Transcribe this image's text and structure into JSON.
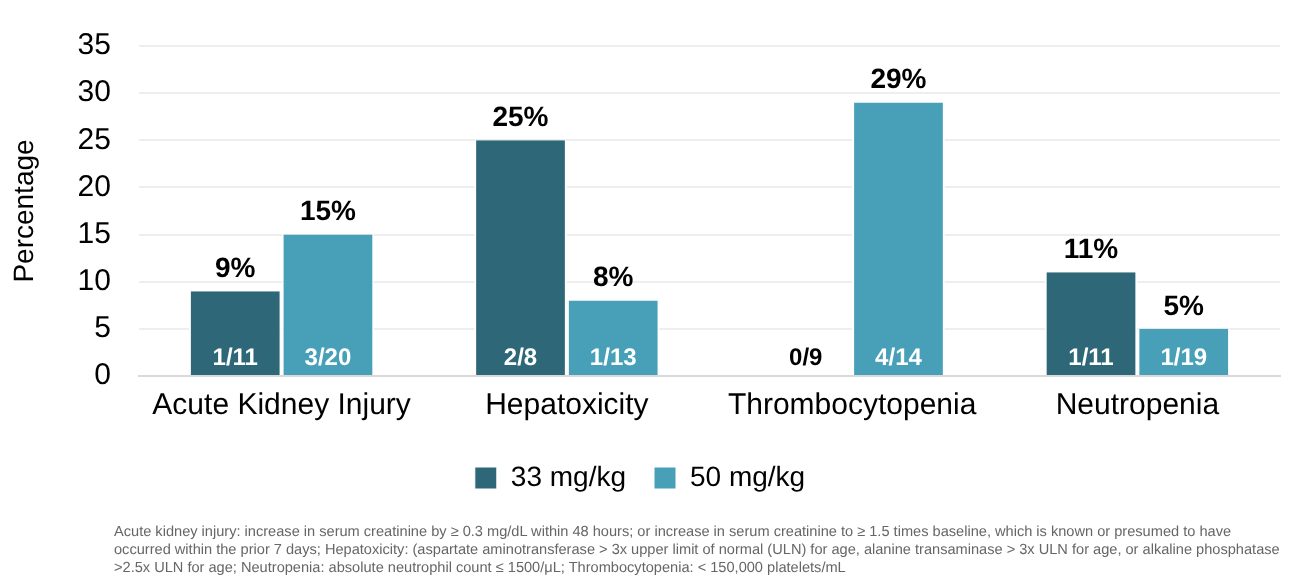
{
  "chart_data": {
    "type": "bar",
    "ylabel": "Percentage",
    "categories": [
      "Acute Kidney Injury",
      "Hepatoxicity",
      "Thrombocytopenia",
      "Neutropenia"
    ],
    "series": [
      {
        "name": "33 mg/kg",
        "color": "#2e6878",
        "values": [
          9,
          25,
          0,
          11
        ],
        "value_labels": [
          "9%",
          "25%",
          null,
          "11%"
        ]
      },
      {
        "name": "50 mg/kg",
        "color": "#47a0b8",
        "values": [
          15,
          8,
          29,
          5
        ],
        "value_labels": [
          "15%",
          "8%",
          "29%",
          "5%"
        ]
      }
    ],
    "ylim": [
      0,
      35
    ],
    "yticks": [
      0,
      5,
      10,
      15,
      20,
      25,
      30,
      35
    ],
    "grid": "y",
    "legend": "bottom",
    "annotations": [
      {
        "text": "1/11",
        "x": "Acute Kidney Injury",
        "y": 0
      },
      {
        "text": "3/20",
        "x": "Acute Kidney Injury",
        "y": 0
      },
      {
        "text": "2/8",
        "x": "Hepatoxicity",
        "y": 0
      },
      {
        "text": "1/13",
        "x": "Hepatoxicity",
        "y": 0
      },
      {
        "text": "0/9",
        "x": "Thrombocytopenia",
        "y": 0
      },
      {
        "text": "4/14",
        "x": "Thrombocytopenia",
        "y": 0
      },
      {
        "text": "1/11",
        "x": "Neutropenia",
        "y": 0
      },
      {
        "text": "1/19",
        "x": "Neutropenia",
        "y": 0
      },
      "Acute kidney injury: increase in serum creatinine by ≥ 0.3 mg/dL within 48 hours; or increase in serum creatinine to ≥ 1.5 times baseline, which is known or presumed to have occurred within the prior 7 days; Hepatoxicity: (aspartate aminotransferase > 3x upper limit of normal (ULN) for age, alanine transaminase > 3x ULN for age, or alkaline phosphatase >2.5x ULN for age; Neutropenia: absolute neutrophil count ≤ 1500/μL; Thrombocytopenia: < 150,000 platelets/mL"
    ]
  }
}
